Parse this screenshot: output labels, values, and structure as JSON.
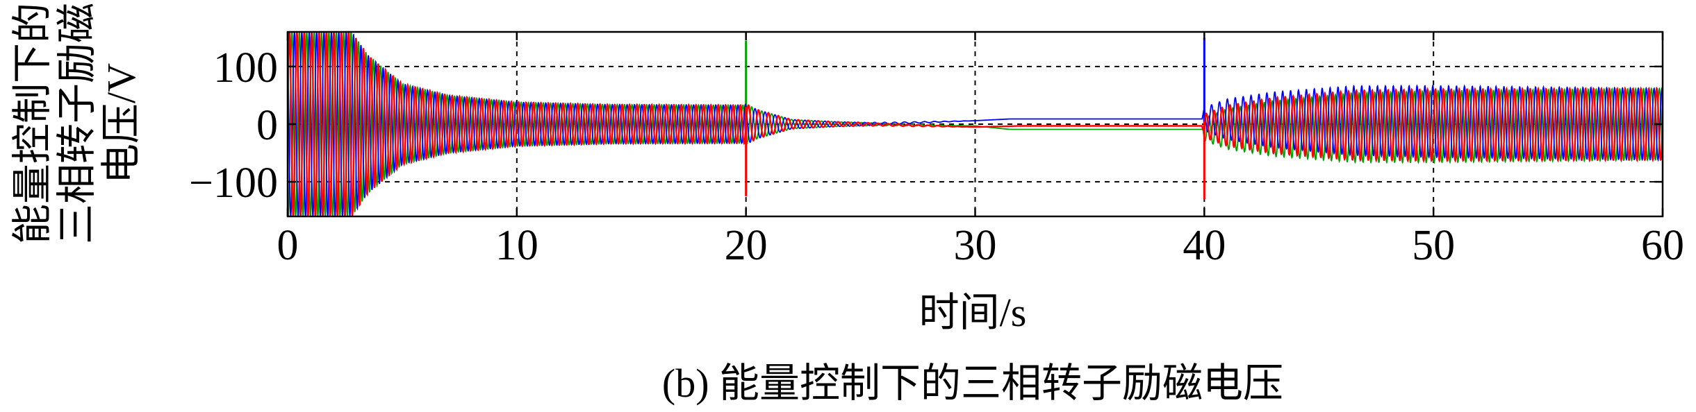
{
  "chart_data": {
    "type": "line",
    "title": "",
    "caption": "(b) 能量控制下的三相转子励磁电压",
    "xlabel": "时间/s",
    "ylabel_lines": [
      "能量控制下的",
      "三相转子励磁",
      "电压/V"
    ],
    "xlim": [
      0,
      60
    ],
    "ylim": [
      -160,
      160
    ],
    "xticks": [
      0,
      10,
      20,
      30,
      40,
      50,
      60
    ],
    "yticks": [
      -100,
      0,
      100
    ],
    "xtick_labels": [
      "0",
      "10",
      "20",
      "30",
      "40",
      "50",
      "60"
    ],
    "ytick_labels": [
      "−100",
      "0",
      "100"
    ],
    "grid": true,
    "grid_style": "dashed",
    "legend": "none",
    "colors": {
      "phase_a": "#ff0000",
      "phase_b": "#00a000",
      "phase_c": "#0000ff"
    },
    "envelope": {
      "t": [
        0,
        2.8,
        3.5,
        5,
        7,
        10,
        14,
        19.9,
        20,
        20.5,
        22,
        24,
        26,
        30,
        39.9,
        40,
        41,
        43,
        45,
        46.5,
        50,
        55,
        60
      ],
      "amplitude": [
        160,
        160,
        120,
        70,
        50,
        38,
        34,
        33,
        35,
        25,
        8,
        4,
        2,
        0,
        0,
        20,
        35,
        48,
        55,
        60,
        62,
        62,
        62
      ]
    },
    "series": [
      {
        "phase": "a",
        "color": "#ff0000",
        "settle_points": {
          "t": [
            0,
            20,
            25,
            30,
            32,
            40,
            60
          ],
          "offset": [
            0,
            0,
            0,
            -5,
            -3,
            -3,
            0
          ]
        },
        "spikes": [
          {
            "t": 20,
            "min": -125,
            "max": 30
          },
          {
            "t": 40,
            "min": -130,
            "max": 5
          }
        ]
      },
      {
        "phase": "b",
        "color": "#00a000",
        "settle_points": {
          "t": [
            0,
            20,
            25,
            30,
            31.5,
            40,
            60
          ],
          "offset": [
            0,
            0,
            0,
            -3,
            -9,
            -9,
            0
          ]
        },
        "spikes": [
          {
            "t": 20,
            "min": 0,
            "max": 145
          },
          {
            "t": 40,
            "min": -9,
            "max": 20
          }
        ]
      },
      {
        "phase": "c",
        "color": "#0000ff",
        "settle_points": {
          "t": [
            0,
            20,
            25,
            30,
            31.5,
            40,
            60
          ],
          "offset": [
            0,
            0,
            0,
            6,
            9,
            9,
            0
          ]
        },
        "spikes": [
          {
            "t": 20,
            "min": -10,
            "max": 10
          },
          {
            "t": 40,
            "min": 0,
            "max": 150
          }
        ]
      }
    ]
  }
}
